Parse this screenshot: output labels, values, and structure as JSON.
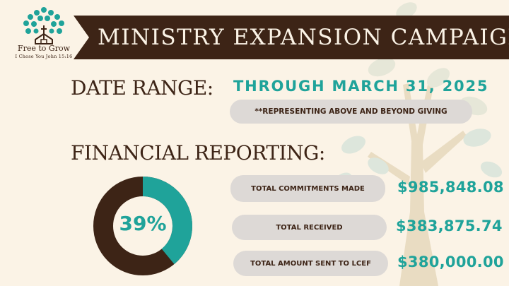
{
  "logo": {
    "name": "Free to Grow",
    "tagline": "I Chose You  John 15:16",
    "icon": "tree-church-icon"
  },
  "banner": {
    "title": "MINISTRY EXPANSION CAMPAIGN"
  },
  "date_range": {
    "label": "DATE RANGE:",
    "value": "THROUGH MARCH 31, 2025",
    "note": "**REPRESENTING ABOVE AND BEYOND GIVING"
  },
  "financial": {
    "label": "FINANCIAL REPORTING:",
    "percent_label": "39%",
    "percent": 39,
    "rows": [
      {
        "label": "TOTAL COMMITMENTS MADE",
        "amount": "$985,848.08"
      },
      {
        "label": "TOTAL RECEIVED",
        "amount": "$383,875.74"
      },
      {
        "label": "TOTAL AMOUNT SENT TO LCEF",
        "amount": "$380,000.00"
      }
    ]
  },
  "colors": {
    "background": "#fbf3e6",
    "brown": "#3d2416",
    "teal": "#1fa39a",
    "pill": "#ddd9d6"
  }
}
